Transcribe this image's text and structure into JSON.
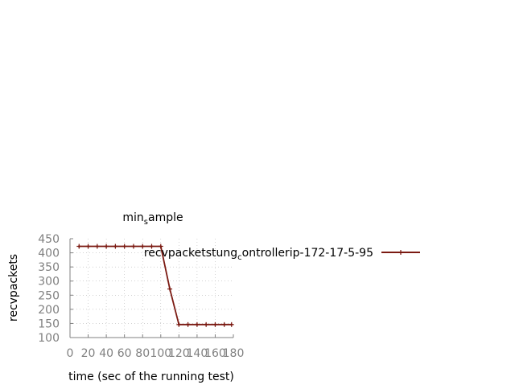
{
  "chart_data": {
    "type": "line",
    "title_main": "min",
    "title_sub": "s",
    "title_rest": "ample",
    "xlabel": "time (sec of the running test)",
    "ylabel": "recvpackets",
    "xlim": [
      0,
      180
    ],
    "ylim": [
      100,
      450
    ],
    "xticks": [
      0,
      20,
      40,
      60,
      80,
      100,
      120,
      140,
      160,
      180
    ],
    "yticks": [
      100,
      150,
      200,
      250,
      300,
      350,
      400,
      450
    ],
    "grid": true,
    "legend_position": "right",
    "series": [
      {
        "name_main": "recvpacketstung",
        "name_sub": "c",
        "name_rest": "ontrollerip-172-17-5-95",
        "color": "#7b1a12",
        "x": [
          10,
          20,
          30,
          40,
          50,
          60,
          70,
          80,
          90,
          100,
          110,
          120,
          130,
          140,
          150,
          160,
          170,
          178
        ],
        "y": [
          423,
          423,
          423,
          423,
          423,
          423,
          423,
          423,
          423,
          423,
          272,
          146,
          146,
          146,
          146,
          146,
          146,
          146
        ]
      }
    ]
  }
}
